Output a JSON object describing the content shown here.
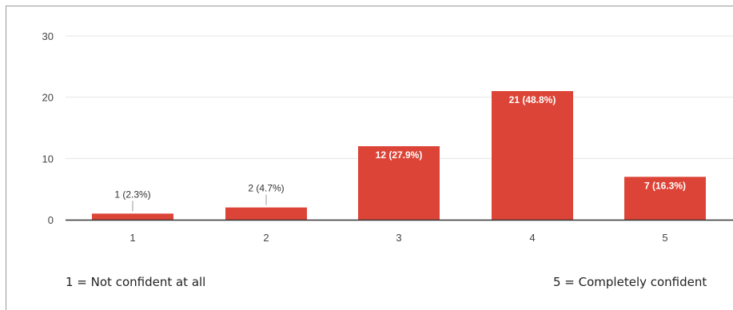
{
  "chart_data": {
    "type": "bar",
    "categories": [
      "1",
      "2",
      "3",
      "4",
      "5"
    ],
    "values": [
      1,
      2,
      12,
      21,
      7
    ],
    "data_labels": [
      "1 (2.3%)",
      "2 (4.7%)",
      "12 (27.9%)",
      "21 (48.8%)",
      "7 (16.3%)"
    ],
    "yticks": [
      "0",
      "10",
      "20",
      "30"
    ],
    "ylim": [
      0,
      30
    ],
    "grid": true,
    "legend": "none",
    "bar_color": "#dc4437"
  },
  "scale_labels": {
    "low": "1 = Not confident at all",
    "high": "5 = Completely confident"
  }
}
